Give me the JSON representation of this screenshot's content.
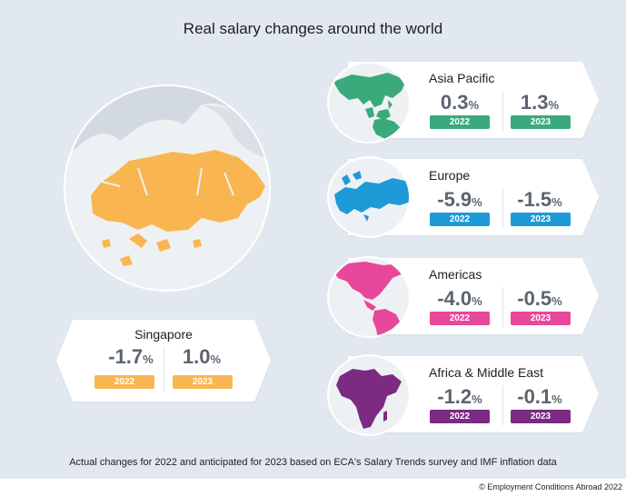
{
  "title": "Real salary changes around the world",
  "footnote": "Actual changes for 2022 and anticipated for 2023 based on ECA's Salary Trends survey and IMF inflation data",
  "copyright": "© Employment Conditions Abroad 2022",
  "colors": {
    "asia_pacific": "#3aaa7d",
    "europe": "#1e9ad6",
    "americas": "#e8489a",
    "africa_middle_east": "#7b2b82",
    "singapore": "#f9b650",
    "value_text": "#5c6470",
    "background": "#e2e8ef"
  },
  "chart_data": {
    "type": "table",
    "title": "Real salary changes around the world",
    "columns": [
      "2022",
      "2023"
    ],
    "unit": "%",
    "rows": [
      {
        "region": "Asia Pacific",
        "icon": "asia-pacific-map-icon",
        "v2022": "0.3",
        "v2023": "1.3"
      },
      {
        "region": "Europe",
        "icon": "europe-map-icon",
        "v2022": "-5.9",
        "v2023": "-1.5"
      },
      {
        "region": "Americas",
        "icon": "americas-map-icon",
        "v2022": "-4.0",
        "v2023": "-0.5"
      },
      {
        "region": "Africa & Middle East",
        "icon": "africa-middle-east-map-icon",
        "v2022": "-1.2",
        "v2023": "-0.1"
      },
      {
        "region": "Singapore",
        "icon": "singapore-map-icon",
        "v2022": "-1.7",
        "v2023": "1.0"
      }
    ]
  }
}
